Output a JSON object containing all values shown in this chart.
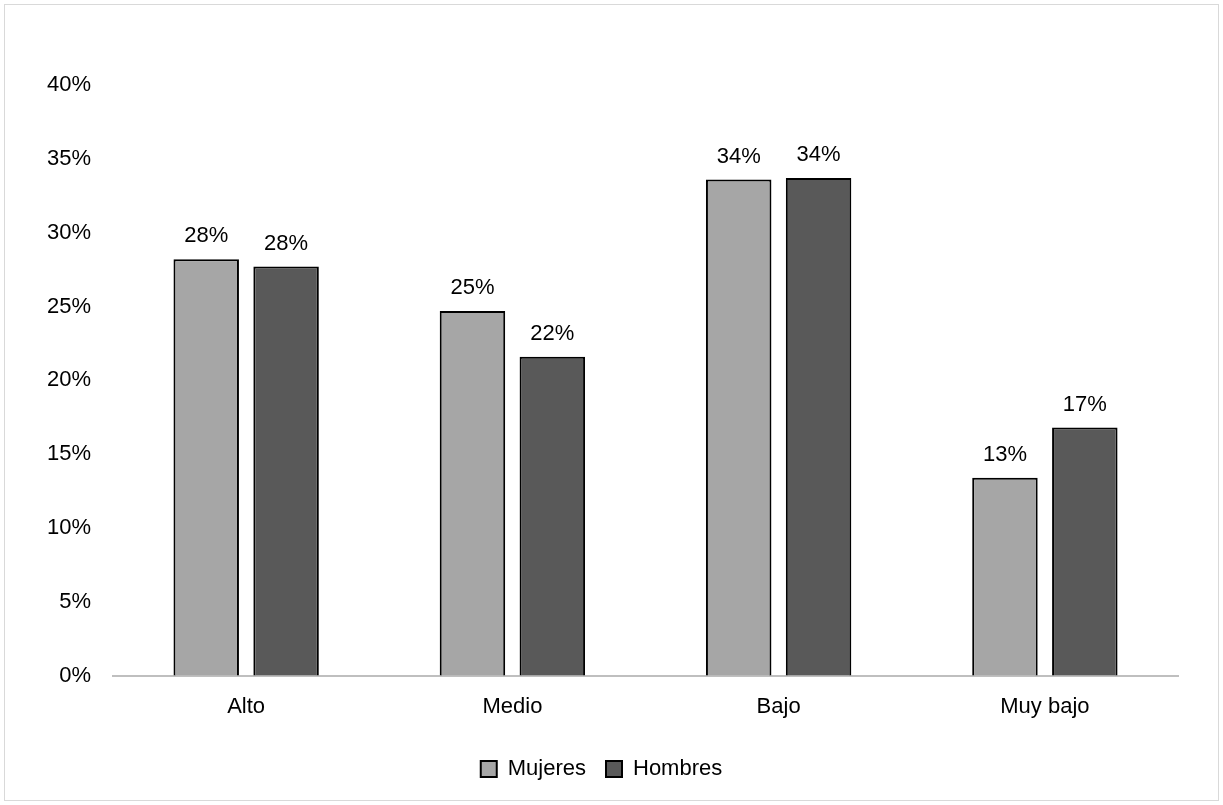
{
  "chart_data": {
    "type": "bar",
    "categories": [
      "Alto",
      "Medio",
      "Bajo",
      "Muy bajo"
    ],
    "series": [
      {
        "name": "Mujeres",
        "color": "#a6a6a6",
        "values": [
          28.2,
          24.7,
          33.6,
          13.4
        ],
        "value_labels": [
          "28%",
          "25%",
          "34%",
          "13%"
        ]
      },
      {
        "name": "Hombres",
        "color": "#595959",
        "values": [
          27.7,
          21.6,
          33.7,
          16.8
        ],
        "value_labels": [
          "28%",
          "22%",
          "34%",
          "17%"
        ]
      }
    ],
    "ylim": [
      0,
      40
    ],
    "yticks": [
      {
        "value": 0,
        "label": "0%"
      },
      {
        "value": 5,
        "label": "5%"
      },
      {
        "value": 10,
        "label": "10%"
      },
      {
        "value": 15,
        "label": "15%"
      },
      {
        "value": 20,
        "label": "20%"
      },
      {
        "value": 25,
        "label": "25%"
      },
      {
        "value": 30,
        "label": "30%"
      },
      {
        "value": 35,
        "label": "35%"
      },
      {
        "value": 40,
        "label": "40%"
      }
    ],
    "grid": false,
    "legend": "bottom"
  }
}
